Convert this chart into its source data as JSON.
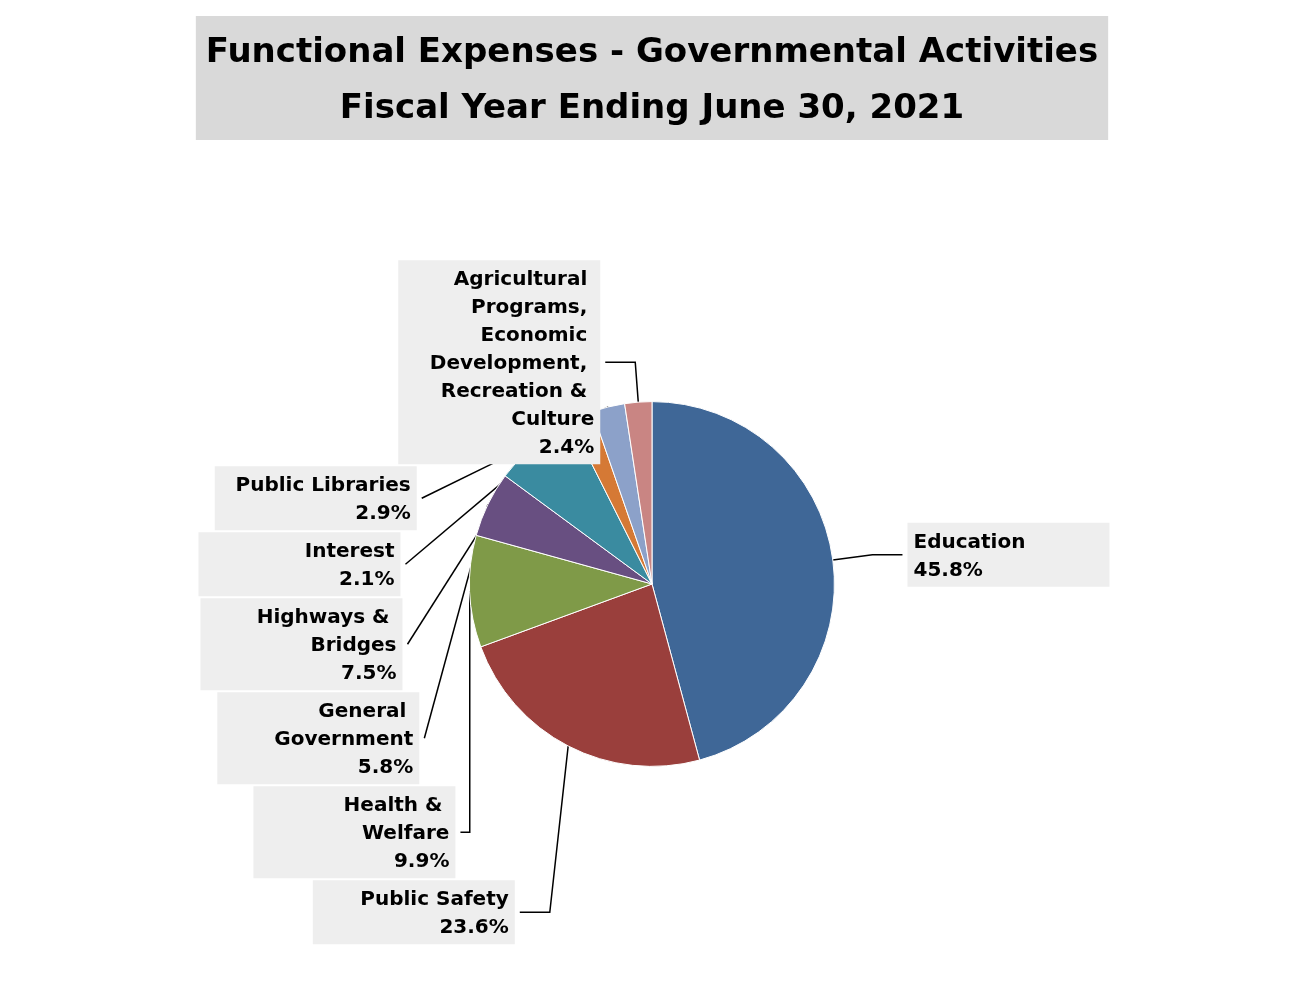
{
  "chart_data": {
    "type": "pie",
    "title": "Functional Expenses - Governmental Activities\nFiscal Year Ending June 30, 2021",
    "categories": [
      "Education",
      "Public Safety",
      "Health & Welfare",
      "General Government",
      "Highways & Bridges",
      "Interest",
      "Public Libraries",
      "Agricultural Programs, Economic Development, Recreation & Culture"
    ],
    "values": [
      45.8,
      23.6,
      9.9,
      5.8,
      7.5,
      2.1,
      2.9,
      2.4
    ],
    "value_labels": [
      "45.8%",
      "23.6%",
      "9.9%",
      "5.8%",
      "7.5%",
      "2.1%",
      "2.9%",
      "2.4%"
    ],
    "colors": [
      "#3f6797",
      "#9a3f3c",
      "#7f9a48",
      "#684f81",
      "#3a8ba0",
      "#d57935",
      "#8ca1c9",
      "#c98583"
    ],
    "legend": false
  }
}
